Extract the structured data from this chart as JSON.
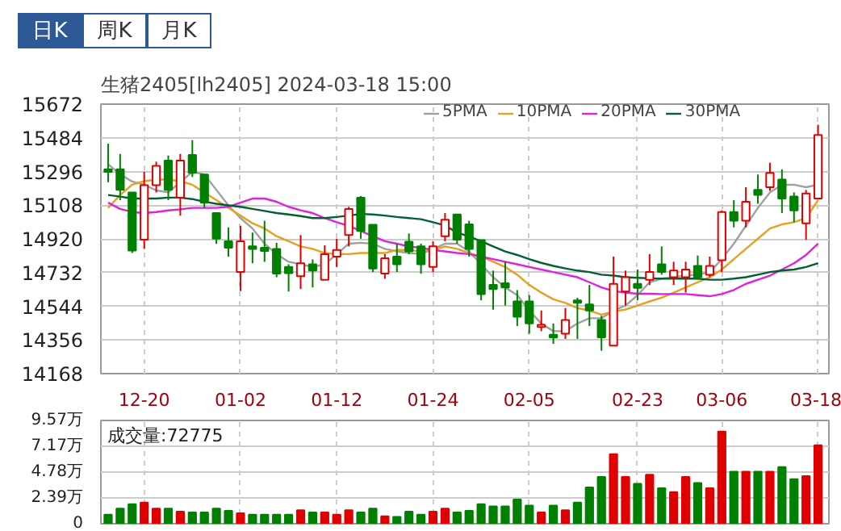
{
  "chart_data": [
    {
      "type": "candlestick",
      "title": "生猪2405[lh2405] 2024-03-18 15:00",
      "annotations": [
        "日K",
        "周K",
        "月K"
      ],
      "categories": [
        null,
        null,
        null,
        "12-20",
        null,
        null,
        null,
        null,
        null,
        null,
        null,
        "01-02",
        null,
        null,
        null,
        null,
        null,
        null,
        null,
        "01-12",
        null,
        null,
        null,
        null,
        null,
        null,
        null,
        "01-24",
        null,
        null,
        null,
        null,
        null,
        null,
        null,
        "02-05",
        null,
        null,
        null,
        null,
        null,
        null,
        null,
        null,
        "02-23",
        null,
        null,
        null,
        null,
        null,
        null,
        "03-06",
        null,
        null,
        null,
        null,
        null,
        null,
        null,
        "03-18"
      ],
      "ohlc": [
        [
          15308,
          15451,
          15236,
          15294
        ],
        [
          15308,
          15394,
          15136,
          15193
        ],
        [
          15179,
          15179,
          14841,
          14855
        ],
        [
          14915,
          15294,
          14864,
          15219
        ],
        [
          15219,
          15351,
          15179,
          15328
        ],
        [
          15357,
          15385,
          15136,
          15193
        ],
        [
          15150,
          15394,
          15050,
          15357
        ],
        [
          15388,
          15471,
          15265,
          15288
        ],
        [
          15279,
          15279,
          15093,
          15122
        ],
        [
          15064,
          15064,
          14892,
          14921
        ],
        [
          14907,
          14984,
          14821,
          14870
        ],
        [
          14735,
          14993,
          14629,
          14907
        ],
        [
          14878,
          14955,
          14784,
          14864
        ],
        [
          14870,
          15021,
          14792,
          14852
        ],
        [
          14864,
          14898,
          14706,
          14726
        ],
        [
          14763,
          14778,
          14626,
          14729
        ],
        [
          14712,
          14941,
          14640,
          14784
        ],
        [
          14778,
          14806,
          14649,
          14743
        ],
        [
          14692,
          14884,
          14692,
          14835
        ],
        [
          14821,
          14921,
          14763,
          14858
        ],
        [
          14941,
          15099,
          14878,
          15087
        ],
        [
          15150,
          15159,
          14921,
          14964
        ],
        [
          14999,
          14999,
          14735,
          14755
        ],
        [
          14726,
          14835,
          14698,
          14812
        ],
        [
          14821,
          14893,
          14735,
          14778
        ],
        [
          14904,
          14950,
          14835,
          14850
        ],
        [
          14878,
          14893,
          14726,
          14778
        ],
        [
          14763,
          14907,
          14735,
          14878
        ],
        [
          14935,
          15064,
          14907,
          15027
        ],
        [
          15056,
          15056,
          14893,
          14915
        ],
        [
          15001,
          15021,
          14821,
          14864
        ],
        [
          14913,
          14913,
          14577,
          14611
        ],
        [
          14663,
          14743,
          14525,
          14640
        ],
        [
          14672,
          14792,
          14548,
          14649
        ],
        [
          14571,
          14634,
          14434,
          14485
        ],
        [
          14571,
          14606,
          14391,
          14448
        ],
        [
          14428,
          14520,
          14405,
          14440
        ],
        [
          14385,
          14448,
          14334,
          14370
        ],
        [
          14391,
          14534,
          14362,
          14468
        ],
        [
          14577,
          14591,
          14362,
          14563
        ],
        [
          14554,
          14663,
          14434,
          14520
        ],
        [
          14468,
          14491,
          14296,
          14371
        ],
        [
          14325,
          14821,
          14325,
          14669
        ],
        [
          14626,
          14743,
          14548,
          14706
        ],
        [
          14669,
          14749,
          14577,
          14646
        ],
        [
          14692,
          14835,
          14663,
          14735
        ],
        [
          14778,
          14878,
          14720,
          14735
        ],
        [
          14706,
          14792,
          14663,
          14743
        ],
        [
          14706,
          14792,
          14620,
          14749
        ],
        [
          14769,
          14827,
          14692,
          14706
        ],
        [
          14720,
          14821,
          14706,
          14769
        ],
        [
          14801,
          15079,
          14735,
          15070
        ],
        [
          15070,
          15136,
          14984,
          15021
        ],
        [
          15021,
          15208,
          14984,
          15127
        ],
        [
          15193,
          15279,
          15116,
          15165
        ],
        [
          15208,
          15345,
          15188,
          15288
        ],
        [
          15251,
          15308,
          15064,
          15145
        ],
        [
          15156,
          15179,
          15013,
          15079
        ],
        [
          15007,
          15193,
          14915,
          15173
        ],
        [
          15145,
          15557,
          15145,
          15500
        ]
      ],
      "colors": [
        "#008000",
        "#008000",
        "#008000",
        "#e00000",
        "#e00000",
        "#008000",
        "#e00000",
        "#008000",
        "#008000",
        "#008000",
        "#008000",
        "#e00000",
        "#008000",
        "#008000",
        "#008000",
        "#008000",
        "#e00000",
        "#008000",
        "#e00000",
        "#e00000",
        "#e00000",
        "#008000",
        "#008000",
        "#e00000",
        "#008000",
        "#008000",
        "#008000",
        "#e00000",
        "#e00000",
        "#008000",
        "#008000",
        "#008000",
        "#008000",
        "#008000",
        "#008000",
        "#008000",
        "#e00000",
        "#008000",
        "#e00000",
        "#008000",
        "#008000",
        "#008000",
        "#e00000",
        "#e00000",
        "#008000",
        "#e00000",
        "#008000",
        "#e00000",
        "#e00000",
        "#008000",
        "#e00000",
        "#e00000",
        "#008000",
        "#e00000",
        "#008000",
        "#e00000",
        "#008000",
        "#008000",
        "#e00000",
        "#e00000"
      ],
      "series": [
        {
          "name": "5PMA",
          "type": "line",
          "color": "#a0a0a0",
          "values": [
            15337,
            15280,
            15240,
            15222,
            15190,
            15180,
            15236,
            15294,
            15279,
            15193,
            15107,
            15036,
            14978,
            14893,
            14835,
            14792,
            14778,
            14763,
            14778,
            14835,
            14893,
            14898,
            14893,
            14864,
            14850,
            14841,
            14835,
            14864,
            14893,
            14893,
            14850,
            14778,
            14706,
            14649,
            14606,
            14520,
            14448,
            14405,
            14405,
            14448,
            14477,
            14477,
            14520,
            14548,
            14606,
            14678,
            14698,
            14706,
            14715,
            14720,
            14735,
            14807,
            14893,
            14993,
            15093,
            15179,
            15222,
            15222,
            15208,
            15222
          ]
        },
        {
          "name": "10PMA",
          "type": "line",
          "color": "#e8a020",
          "values": [
            15093,
            15165,
            15222,
            15242,
            15251,
            15251,
            15242,
            15222,
            15179,
            15136,
            15093,
            15050,
            15007,
            14978,
            14935,
            14907,
            14878,
            14864,
            14841,
            14835,
            14835,
            14841,
            14841,
            14841,
            14858,
            14858,
            14850,
            14858,
            14878,
            14864,
            14841,
            14821,
            14792,
            14763,
            14720,
            14663,
            14620,
            14583,
            14563,
            14534,
            14520,
            14497,
            14514,
            14526,
            14548,
            14571,
            14592,
            14620,
            14649,
            14678,
            14706,
            14749,
            14807,
            14864,
            14921,
            14978,
            15001,
            15013,
            15036,
            15136
          ]
        },
        {
          "name": "20PMA",
          "type": "line",
          "color": "#e020e0",
          "values": [
            15122,
            15087,
            15070,
            15064,
            15070,
            15079,
            15085,
            15093,
            15093,
            15093,
            15099,
            15122,
            15145,
            15145,
            15127,
            15099,
            15079,
            15064,
            15036,
            15013,
            14993,
            14964,
            14935,
            14907,
            14893,
            14878,
            14870,
            14858,
            14850,
            14841,
            14835,
            14821,
            14807,
            14792,
            14778,
            14763,
            14749,
            14735,
            14720,
            14706,
            14678,
            14649,
            14629,
            14620,
            14614,
            14614,
            14612,
            14612,
            14612,
            14606,
            14600,
            14612,
            14635,
            14669,
            14692,
            14715,
            14749,
            14784,
            14830,
            14893
          ]
        },
        {
          "name": "30PMA",
          "type": "line",
          "color": "#006030",
          "values": [
            15165,
            15156,
            15145,
            15145,
            15145,
            15150,
            15150,
            15142,
            15127,
            15116,
            15107,
            15099,
            15087,
            15076,
            15064,
            15056,
            15047,
            15036,
            15036,
            15042,
            15050,
            15059,
            15056,
            15050,
            15042,
            15036,
            15030,
            15013,
            14995,
            14955,
            14933,
            14907,
            14878,
            14850,
            14830,
            14807,
            14786,
            14769,
            14755,
            14743,
            14735,
            14720,
            14715,
            14706,
            14703,
            14700,
            14698,
            14698,
            14698,
            14698,
            14692,
            14692,
            14698,
            14706,
            14720,
            14735,
            14743,
            14749,
            14763,
            14784
          ]
        }
      ],
      "ylim": [
        14168,
        15672
      ],
      "yticks": [
        14168,
        14356,
        14544,
        14732,
        14920,
        15108,
        15296,
        15484,
        15672
      ],
      "grid": true,
      "legend": "top right"
    },
    {
      "type": "bar",
      "title": "成交量:72775",
      "categories": [
        null,
        null,
        null,
        null,
        null,
        null,
        null,
        null,
        null,
        null,
        null,
        null,
        null,
        null,
        null,
        null,
        null,
        null,
        null,
        null,
        null,
        null,
        null,
        null,
        null,
        null,
        null,
        null,
        null,
        null,
        null,
        null,
        null,
        null,
        null,
        null,
        null,
        null,
        null,
        null,
        null,
        null,
        null,
        null,
        null,
        null,
        null,
        null,
        null,
        null,
        null,
        null,
        null,
        null,
        null,
        null,
        null,
        null,
        null,
        null
      ],
      "values": [
        0.84,
        1.4,
        1.82,
        1.96,
        1.4,
        1.4,
        1.12,
        1.05,
        1.05,
        1.4,
        1.19,
        0.98,
        0.84,
        0.84,
        0.84,
        0.84,
        1.26,
        1.05,
        1.05,
        0.84,
        1.26,
        1.05,
        1.4,
        0.7,
        0.63,
        1.12,
        0.84,
        1.12,
        1.4,
        1.05,
        1.19,
        1.82,
        1.61,
        1.61,
        2.24,
        1.68,
        1.05,
        1.68,
        1.26,
        1.96,
        3.36,
        4.34,
        6.44,
        4.34,
        3.71,
        4.55,
        3.29,
        2.94,
        4.34,
        3.78,
        3.29,
        8.54,
        4.83,
        4.83,
        4.83,
        4.83,
        5.25,
        4.13,
        4.41,
        7.28
      ],
      "colors": [
        "#008000",
        "#008000",
        "#008000",
        "#e00000",
        "#e00000",
        "#008000",
        "#e00000",
        "#008000",
        "#008000",
        "#008000",
        "#008000",
        "#e00000",
        "#008000",
        "#008000",
        "#008000",
        "#008000",
        "#e00000",
        "#008000",
        "#e00000",
        "#e00000",
        "#e00000",
        "#008000",
        "#008000",
        "#e00000",
        "#008000",
        "#008000",
        "#008000",
        "#e00000",
        "#e00000",
        "#008000",
        "#008000",
        "#008000",
        "#008000",
        "#008000",
        "#008000",
        "#008000",
        "#e00000",
        "#008000",
        "#e00000",
        "#008000",
        "#008000",
        "#008000",
        "#e00000",
        "#e00000",
        "#008000",
        "#e00000",
        "#008000",
        "#e00000",
        "#e00000",
        "#008000",
        "#e00000",
        "#e00000",
        "#008000",
        "#e00000",
        "#008000",
        "#e00000",
        "#008000",
        "#008000",
        "#e00000",
        "#e00000"
      ],
      "ylim": [
        0,
        9.57
      ],
      "yticks": [
        0,
        {
          "value": 2.39,
          "label": "2.39万"
        },
        {
          "value": 4.78,
          "label": "4.78万"
        },
        {
          "value": 7.17,
          "label": "7.17万"
        },
        {
          "value": 9.57,
          "label": "9.57万"
        }
      ],
      "grid": true
    }
  ]
}
